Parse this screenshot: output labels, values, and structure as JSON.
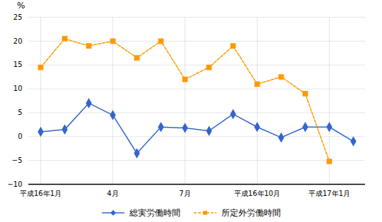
{
  "chart_data": {
    "type": "line",
    "categories": [
      "平成16年1月",
      null,
      null,
      "4月",
      null,
      null,
      "7月",
      null,
      null,
      "平成16年10月",
      null,
      null,
      "平成17年1月",
      null
    ],
    "series": [
      {
        "name": "総実労働時間",
        "color": "#3366CC",
        "marker": "diamond",
        "line_style": "solid",
        "values": [
          1.0,
          1.5,
          7.0,
          4.5,
          -3.5,
          2.0,
          1.8,
          1.2,
          4.7,
          2.0,
          -0.2,
          2.0,
          2.0,
          -1.0
        ]
      },
      {
        "name": "所定外労働時間",
        "color": "#FF9900",
        "marker": "square",
        "line_style": "dashed",
        "values": [
          14.5,
          20.5,
          19.0,
          20.0,
          16.5,
          20.0,
          12.0,
          14.5,
          19.0,
          11.0,
          12.5,
          9.0,
          -5.2,
          null
        ]
      }
    ],
    "ylabel": "%",
    "ylim": [
      -10,
      25
    ],
    "yticks": [
      -10,
      -5,
      0,
      5,
      10,
      15,
      20,
      25
    ],
    "grid": true,
    "legend": "bottom"
  }
}
